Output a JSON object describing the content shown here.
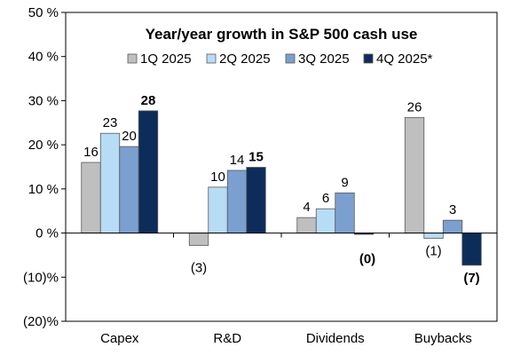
{
  "chart_data": {
    "type": "bar",
    "title": "Year/year growth in S&P 500 cash use",
    "xlabel": "",
    "ylabel": "",
    "categories": [
      "Capex",
      "R&D",
      "Dividends",
      "Buybacks"
    ],
    "ylim": [
      -20,
      50
    ],
    "yticks": [
      {
        "value": 50,
        "label": "50 %"
      },
      {
        "value": 40,
        "label": "40 %"
      },
      {
        "value": 30,
        "label": "30 %"
      },
      {
        "value": 20,
        "label": "20 %"
      },
      {
        "value": 10,
        "label": "10 %"
      },
      {
        "value": 0,
        "label": "0 %"
      },
      {
        "value": -10,
        "label": "(10)%"
      },
      {
        "value": -20,
        "label": "(20)%"
      }
    ],
    "grid": false,
    "legend_position": "top",
    "series": [
      {
        "name": "1Q 2025",
        "color": "#bfbfbf",
        "values": [
          16,
          null,
          3.5,
          26.2
        ],
        "labels": [
          "16",
          "",
          "4",
          "26"
        ],
        "bold": false
      },
      {
        "name": "2Q 2025",
        "color": "#b7dcf5",
        "values": [
          22.6,
          10.4,
          5.5,
          -1.2
        ],
        "labels": [
          "23",
          "10",
          "6",
          "(1)"
        ],
        "bold": false
      },
      {
        "name": "3Q 2025",
        "color": "#7b9fcf",
        "values": [
          19.6,
          14.2,
          9.1,
          2.9
        ],
        "labels": [
          "20",
          "14",
          "9",
          "3"
        ],
        "bold": false
      },
      {
        "name": "4Q 2025*",
        "color": "#0c2d5a",
        "values": [
          27.7,
          14.9,
          -0.3,
          -7.3
        ],
        "labels": [
          "28",
          "15",
          "(0)",
          "(7)"
        ],
        "bold": true
      }
    ],
    "extra_labels": [
      {
        "category": "R&D",
        "series": "1Q 2025",
        "value": -2.8,
        "label": "(3)"
      }
    ]
  }
}
